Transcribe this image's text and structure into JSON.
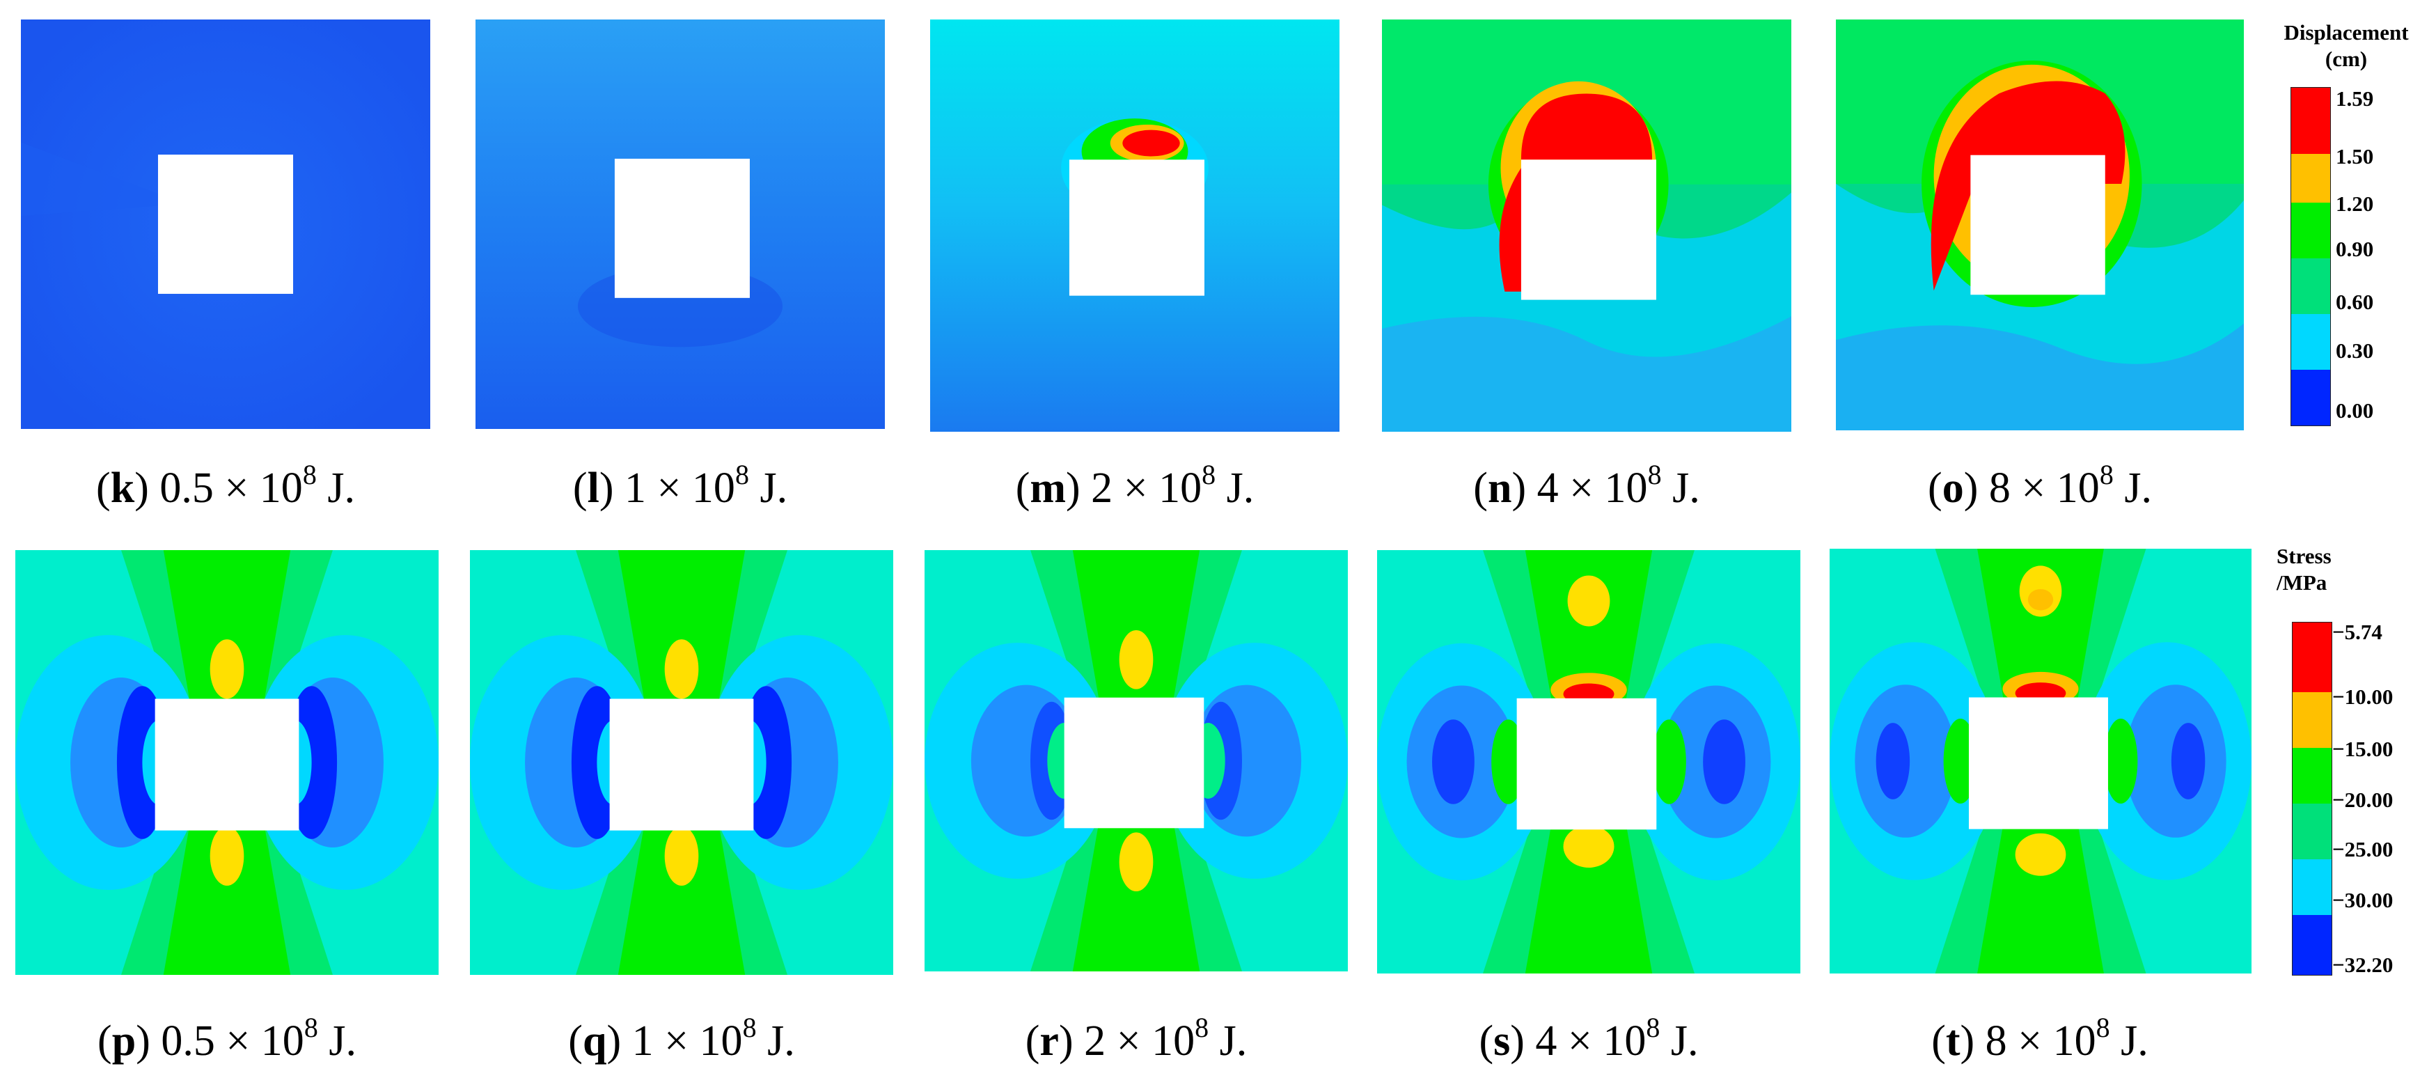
{
  "figure": {
    "displacement_row": {
      "panels": [
        {
          "letter": "k",
          "energy": "0.5 × 10",
          "exp": "8",
          "unit": " J."
        },
        {
          "letter": "l",
          "energy": "1 × 10",
          "exp": "8",
          "unit": " J."
        },
        {
          "letter": "m",
          "energy": "2 × 10",
          "exp": "8",
          "unit": " J."
        },
        {
          "letter": "n",
          "energy": "4 × 10",
          "exp": "8",
          "unit": " J."
        },
        {
          "letter": "o",
          "energy": "8 × 10",
          "exp": "8",
          "unit": " J."
        }
      ],
      "legend": {
        "title_line1": "Displacement",
        "title_line2": "(cm)",
        "ticks": [
          "1.59",
          "1.50",
          "1.20",
          "0.90",
          "0.60",
          "0.30",
          "0.00"
        ],
        "colors": [
          "#ff0000",
          "#ffc000",
          "#00ee00",
          "#00e07a",
          "#00d8ff",
          "#0026ff"
        ]
      }
    },
    "stress_row": {
      "panels": [
        {
          "letter": "p",
          "energy": "0.5 × 10",
          "exp": "8",
          "unit": " J."
        },
        {
          "letter": "q",
          "energy": "1 × 10",
          "exp": "8",
          "unit": " J."
        },
        {
          "letter": "r",
          "energy": "2 × 10",
          "exp": "8",
          "unit": " J."
        },
        {
          "letter": "s",
          "energy": "4 × 10",
          "exp": "8",
          "unit": " J."
        },
        {
          "letter": "t",
          "energy": "8 × 10",
          "exp": "8",
          "unit": " J."
        }
      ],
      "legend": {
        "title_line1": "Stress",
        "title_line2": "/MPa",
        "ticks": [
          "−5.74",
          "−10.00",
          "−15.00",
          "−20.00",
          "−25.00",
          "−30.00",
          "−32.20"
        ],
        "colors": [
          "#ff0000",
          "#ffc000",
          "#00ee00",
          "#00e07a",
          "#00d8ff",
          "#0026ff"
        ]
      }
    }
  }
}
